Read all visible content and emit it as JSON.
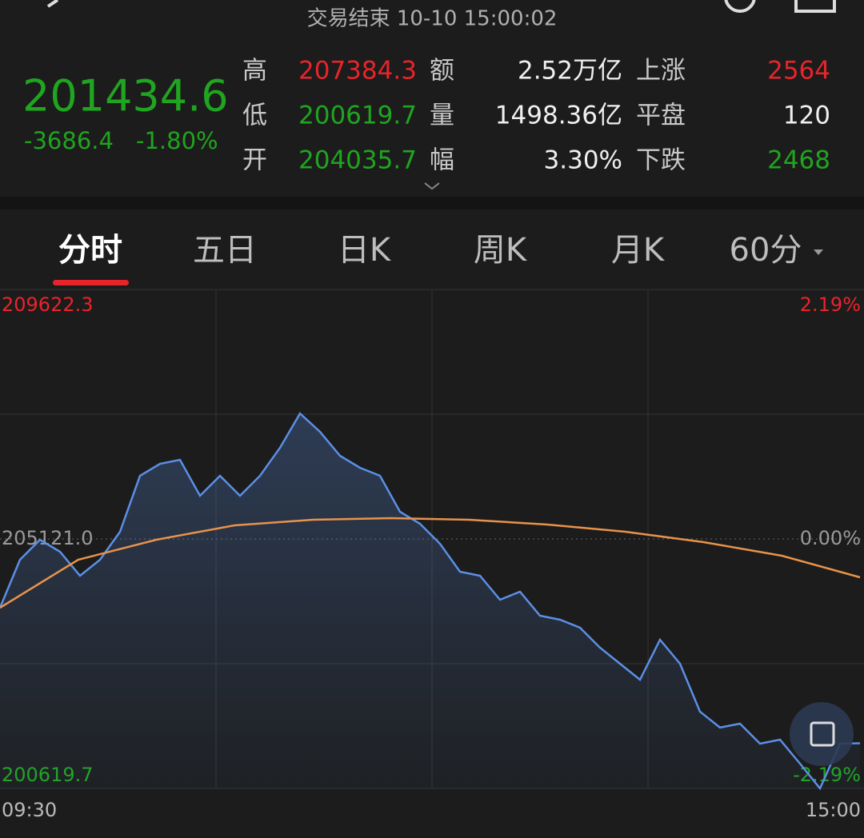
{
  "header": {
    "status": "交易结束 10-10 15:00:02"
  },
  "quote": {
    "price": "201434.6",
    "change": "-3686.4",
    "change_pct": "-1.80%",
    "rows": [
      [
        "高",
        "207384.3",
        "额",
        "2.52万亿",
        "上涨",
        "2564"
      ],
      [
        "低",
        "200619.7",
        "量",
        "1498.36亿",
        "平盘",
        "120"
      ],
      [
        "开",
        "204035.7",
        "幅",
        "3.30%",
        "下跌",
        "2468"
      ]
    ]
  },
  "tabs": [
    "分时",
    "五日",
    "日K",
    "周K",
    "月K",
    "60分"
  ],
  "chart_data": {
    "type": "line",
    "x_labels": [
      "09:30",
      "15:00"
    ],
    "ylim": [
      200619.7,
      209622.3
    ],
    "yticks": [
      209622.3,
      {
        "value": 205121,
        "label": "205121.0"
      },
      200619.7
    ],
    "y2lim": [
      -2.19,
      2.19
    ],
    "y2ticks": [
      {
        "value": 2.19,
        "label": "2.19%"
      },
      {
        "value": 0,
        "label": "0.00%"
      },
      {
        "value": -2.19,
        "label": "-2.19%"
      }
    ],
    "series": [
      {
        "color": "#5b8fe6",
        "area": true,
        "values": [
          203880,
          204746,
          205107,
          204890,
          204457,
          204746,
          205251,
          206261,
          206477,
          206550,
          205900,
          206261,
          205900,
          206261,
          206766,
          207384,
          207054,
          206621,
          206405,
          206261,
          205611,
          205395,
          205034,
          204530,
          204457,
          204025,
          204169,
          203736,
          203664,
          203520,
          203159,
          202871,
          202582,
          203303,
          202871,
          202005,
          201717,
          201789,
          201428,
          201500,
          201067,
          200620,
          201428,
          201435
        ]
      },
      {
        "color": "#e8934a",
        "values": [
          203880,
          204746,
          205107,
          205366,
          205467,
          205496,
          205467,
          205380,
          205251,
          205063,
          204818,
          204429
        ]
      }
    ]
  }
}
